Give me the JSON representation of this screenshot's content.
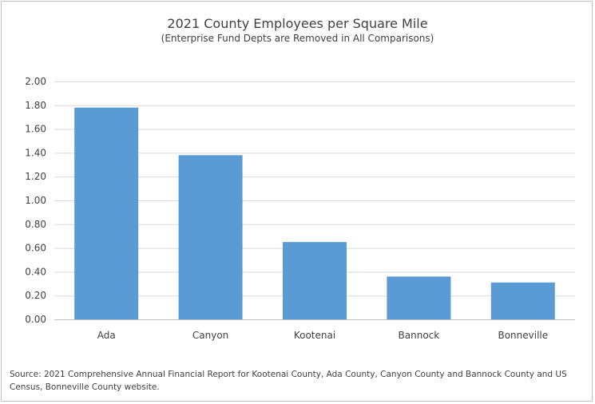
{
  "chart_data": {
    "type": "bar",
    "title": "2021 County Employees per Square Mile",
    "subtitle": "(Enterprise Fund Depts are Removed in All Comparisons)",
    "categories": [
      "Ada",
      "Canyon",
      "Kootenai",
      "Bannock",
      "Bonneville"
    ],
    "values": [
      1.78,
      1.38,
      0.65,
      0.36,
      0.31
    ],
    "xlabel": "",
    "ylabel": "",
    "ylim": [
      0,
      2.0
    ],
    "yticks": [
      "0.00",
      "0.20",
      "0.40",
      "0.60",
      "0.80",
      "1.00",
      "1.20",
      "1.40",
      "1.60",
      "1.80",
      "2.00"
    ],
    "grid": true,
    "bar_color": "#5b9bd5",
    "source": "Source:  2021 Comprehensive Annual Financial Report for Kootenai County, Ada County, Canyon County and Bannock County and US Census, Bonneville County website."
  }
}
